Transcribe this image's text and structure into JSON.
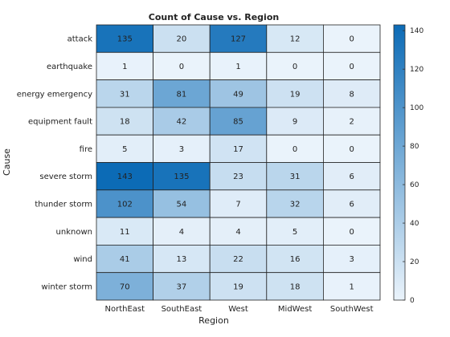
{
  "chart_data": {
    "type": "heatmap",
    "title": "Count of Cause vs. Region",
    "xlabel": "Region",
    "ylabel": "Cause",
    "x_categories": [
      "NorthEast",
      "SouthEast",
      "West",
      "MidWest",
      "SouthWest"
    ],
    "y_categories": [
      "attack",
      "earthquake",
      "energy emergency",
      "equipment fault",
      "fire",
      "severe storm",
      "thunder storm",
      "unknown",
      "wind",
      "winter storm"
    ],
    "values": [
      [
        135,
        20,
        127,
        12,
        0
      ],
      [
        1,
        0,
        1,
        0,
        0
      ],
      [
        31,
        81,
        49,
        19,
        8
      ],
      [
        18,
        42,
        85,
        9,
        2
      ],
      [
        5,
        3,
        17,
        0,
        0
      ],
      [
        143,
        135,
        23,
        31,
        6
      ],
      [
        102,
        54,
        7,
        32,
        6
      ],
      [
        11,
        4,
        4,
        5,
        0
      ],
      [
        41,
        13,
        22,
        16,
        3
      ],
      [
        70,
        37,
        19,
        18,
        1
      ]
    ],
    "colorbar": {
      "range": [
        0,
        143
      ],
      "ticks": [
        0,
        20,
        40,
        60,
        80,
        100,
        120,
        140
      ],
      "color_low": "#eaf3fb",
      "color_high": "#0c6bb6"
    },
    "grid": true,
    "legend": "colorbar-right"
  }
}
